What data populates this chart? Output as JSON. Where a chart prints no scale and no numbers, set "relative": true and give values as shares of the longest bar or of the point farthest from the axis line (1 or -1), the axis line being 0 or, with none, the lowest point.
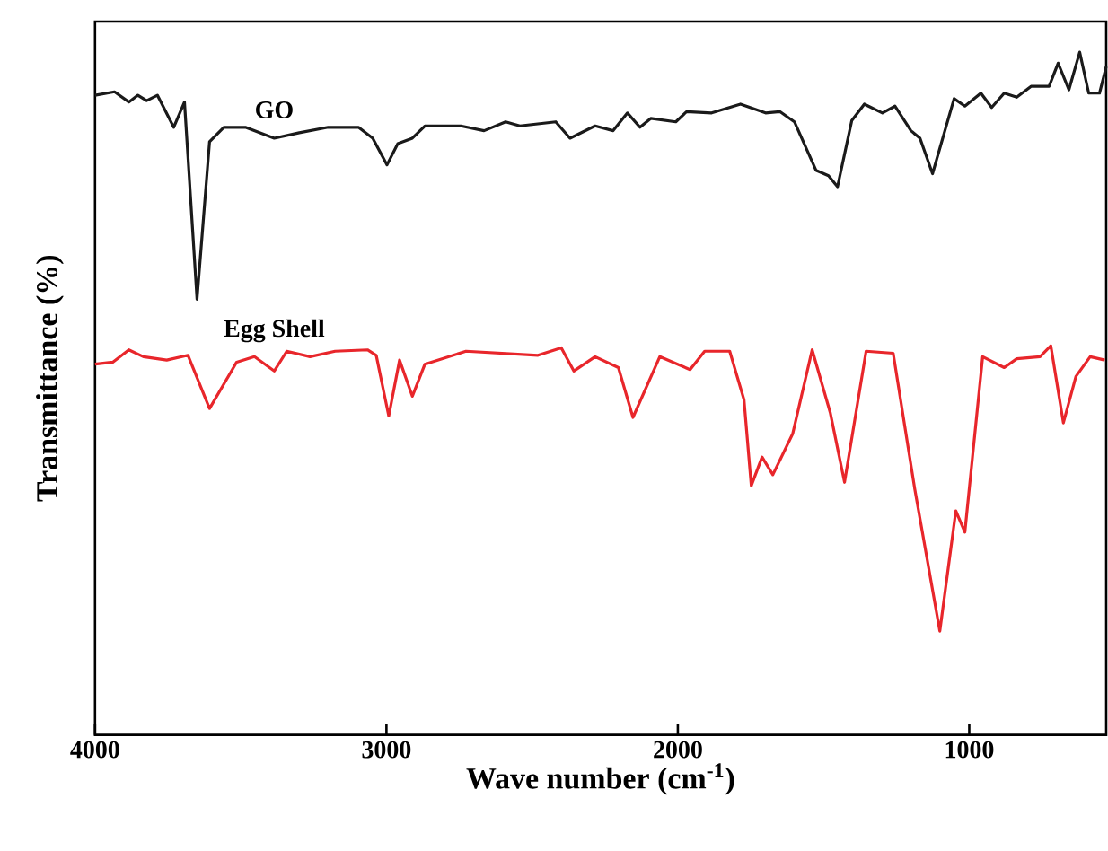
{
  "chart_data": {
    "type": "line",
    "xlabel": "Wave number (cm$^{-1}$)",
    "ylabel": "Transmittance (%)",
    "relative": true,
    "xlim": [
      4000,
      530
    ],
    "xticks": [
      4000,
      3000,
      2000,
      1000
    ],
    "legend": false,
    "grid": false,
    "marker": "none",
    "line_style": "solid",
    "series": [
      {
        "name": "GO",
        "color": "#1a1a1a",
        "x": [
          4000,
          3933,
          3884,
          3853,
          3823,
          3786,
          3730,
          3693,
          3650,
          3607,
          3558,
          3484,
          3385,
          3299,
          3200,
          3096,
          3047,
          2998,
          2961,
          2911,
          2868,
          2745,
          2665,
          2591,
          2542,
          2419,
          2370,
          2284,
          2222,
          2173,
          2130,
          2093,
          2007,
          1970,
          1884,
          1785,
          1699,
          1650,
          1600,
          1526,
          1483,
          1452,
          1403,
          1360,
          1298,
          1255,
          1200,
          1169,
          1126,
          1052,
          1015,
          960,
          923,
          880,
          837,
          788,
          726,
          695,
          658,
          621,
          590,
          553,
          530
        ],
        "values": [
          0.937,
          0.942,
          0.927,
          0.937,
          0.929,
          0.937,
          0.89,
          0.927,
          0.638,
          0.869,
          0.89,
          0.89,
          0.874,
          0.882,
          0.89,
          0.89,
          0.874,
          0.835,
          0.866,
          0.874,
          0.892,
          0.892,
          0.885,
          0.898,
          0.892,
          0.898,
          0.874,
          0.892,
          0.885,
          0.911,
          0.89,
          0.903,
          0.898,
          0.913,
          0.911,
          0.924,
          0.911,
          0.913,
          0.898,
          0.827,
          0.819,
          0.803,
          0.9,
          0.924,
          0.911,
          0.921,
          0.885,
          0.874,
          0.822,
          0.932,
          0.921,
          0.94,
          0.919,
          0.94,
          0.934,
          0.95,
          0.95,
          0.984,
          0.945,
          1.0,
          0.94,
          0.94,
          0.979
        ]
      },
      {
        "name": "Egg Shell",
        "color": "#e8262b",
        "x": [
          4000,
          3939,
          3884,
          3834,
          3754,
          3681,
          3607,
          3514,
          3453,
          3385,
          3342,
          3262,
          3176,
          3065,
          3035,
          2992,
          2955,
          2911,
          2868,
          2727,
          2480,
          2400,
          2357,
          2284,
          2204,
          2154,
          2062,
          1958,
          1908,
          1822,
          1773,
          1748,
          1711,
          1674,
          1606,
          1539,
          1477,
          1428,
          1354,
          1261,
          1187,
          1101,
          1046,
          1015,
          954,
          880,
          837,
          757,
          720,
          677,
          634,
          585,
          535
        ],
        "values": [
          0.543,
          0.546,
          0.564,
          0.554,
          0.549,
          0.556,
          0.478,
          0.546,
          0.554,
          0.533,
          0.562,
          0.554,
          0.562,
          0.564,
          0.556,
          0.467,
          0.549,
          0.496,
          0.543,
          0.562,
          0.556,
          0.567,
          0.533,
          0.554,
          0.538,
          0.465,
          0.554,
          0.535,
          0.562,
          0.562,
          0.491,
          0.365,
          0.407,
          0.381,
          0.441,
          0.564,
          0.472,
          0.37,
          0.562,
          0.559,
          0.36,
          0.152,
          0.328,
          0.297,
          0.554,
          0.538,
          0.551,
          0.554,
          0.57,
          0.457,
          0.525,
          0.554,
          0.549
        ]
      }
    ]
  }
}
